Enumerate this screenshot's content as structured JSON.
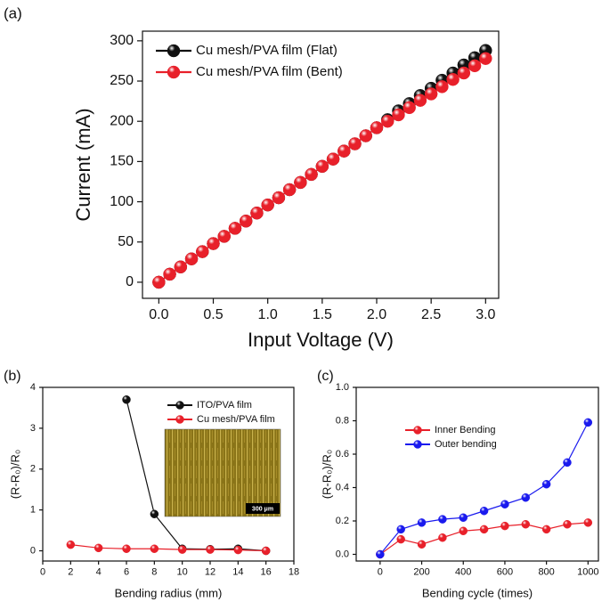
{
  "chart_data": [
    {
      "type": "line",
      "panel_label": "(a)",
      "x_label": "Input Voltage (V)",
      "y_label": "Current (mA)",
      "xlim": [
        -0.15,
        3.12
      ],
      "ylim": [
        -20,
        312
      ],
      "xticks": [
        {
          "value": 0,
          "label": "0.0"
        },
        {
          "value": 0.5,
          "label": "0.5"
        },
        {
          "value": 1,
          "label": "1.0"
        },
        {
          "value": 1.5,
          "label": "1.5"
        },
        {
          "value": 2,
          "label": "2.0"
        },
        {
          "value": 2.5,
          "label": "2.5"
        },
        {
          "value": 3,
          "label": "3.0"
        }
      ],
      "yticks": [
        0,
        50,
        100,
        150,
        200,
        250,
        300
      ],
      "legend": "upper left",
      "series": [
        {
          "name": "Cu mesh/PVA film (Flat)",
          "color": "#111111",
          "x": [
            0,
            0.1,
            0.2,
            0.3,
            0.4,
            0.5,
            0.6,
            0.7,
            0.8,
            0.9,
            1,
            1.1,
            1.2,
            1.3,
            1.4,
            1.5,
            1.6,
            1.7,
            1.8,
            1.9,
            2,
            2.1,
            2.2,
            2.3,
            2.4,
            2.5,
            2.6,
            2.7,
            2.8,
            2.9,
            3
          ],
          "values": [
            0,
            10,
            19,
            29,
            38,
            48,
            57,
            67,
            76,
            86,
            96,
            105,
            115,
            124,
            134,
            144,
            153,
            163,
            172,
            182,
            192,
            202,
            213,
            222,
            232,
            241,
            251,
            260,
            270,
            279,
            288
          ]
        },
        {
          "name": "Cu mesh/PVA film (Bent)",
          "color": "#e8202a",
          "x": [
            0,
            0.1,
            0.2,
            0.3,
            0.4,
            0.5,
            0.6,
            0.7,
            0.8,
            0.9,
            1,
            1.1,
            1.2,
            1.3,
            1.4,
            1.5,
            1.6,
            1.7,
            1.8,
            1.9,
            2,
            2.1,
            2.2,
            2.3,
            2.4,
            2.5,
            2.6,
            2.7,
            2.8,
            2.9,
            3
          ],
          "values": [
            0,
            10,
            19,
            29,
            38,
            48,
            57,
            67,
            76,
            86,
            96,
            105,
            115,
            124,
            134,
            144,
            153,
            163,
            172,
            182,
            192,
            200,
            208,
            217,
            226,
            234,
            243,
            252,
            260,
            269,
            278
          ]
        }
      ]
    },
    {
      "type": "line",
      "panel_label": "(b)",
      "x_label": "Bending radius (mm)",
      "y_label": "(R-R₀)/R₀",
      "xlim": [
        0,
        18
      ],
      "ylim": [
        -0.25,
        4
      ],
      "xticks": [
        0,
        2,
        4,
        6,
        8,
        10,
        12,
        14,
        16,
        18
      ],
      "yticks": [
        0,
        1,
        2,
        3,
        4
      ],
      "legend": "upper right",
      "inset_label": "300 μm",
      "series": [
        {
          "name": "ITO/PVA film",
          "color": "#111111",
          "x": [
            6,
            8,
            10,
            12,
            14,
            16
          ],
          "values": [
            3.7,
            0.9,
            0.05,
            0.04,
            0.05,
            0
          ]
        },
        {
          "name": "Cu mesh/PVA film",
          "color": "#e8202a",
          "x": [
            2,
            4,
            6,
            8,
            10,
            12,
            14,
            16
          ],
          "values": [
            0.15,
            0.07,
            0.05,
            0.05,
            0.03,
            0.03,
            0.02,
            0
          ]
        }
      ]
    },
    {
      "type": "line",
      "panel_label": "(c)",
      "x_label": "Bending cycle (times)",
      "y_label": "(R-R₀)/R₀",
      "xlim": [
        -115,
        1050
      ],
      "ylim": [
        -0.04,
        1
      ],
      "xticks": [
        0,
        200,
        400,
        600,
        800,
        1000
      ],
      "yticks": [
        {
          "value": 0,
          "label": "0.0"
        },
        {
          "value": 0.2,
          "label": "0.2"
        },
        {
          "value": 0.4,
          "label": "0.4"
        },
        {
          "value": 0.6,
          "label": "0.6"
        },
        {
          "value": 0.8,
          "label": "0.8"
        },
        {
          "value": 1,
          "label": "1.0"
        }
      ],
      "legend": "upper left",
      "series": [
        {
          "name": "Inner Bending",
          "color": "#e8202a",
          "x": [
            0,
            100,
            200,
            300,
            400,
            500,
            600,
            700,
            800,
            900,
            1000
          ],
          "values": [
            0,
            0.09,
            0.06,
            0.1,
            0.14,
            0.15,
            0.17,
            0.18,
            0.15,
            0.18,
            0.19
          ]
        },
        {
          "name": "Outer bending",
          "color": "#1a1aee",
          "x": [
            0,
            100,
            200,
            300,
            400,
            500,
            600,
            700,
            800,
            900,
            1000
          ],
          "values": [
            0,
            0.15,
            0.19,
            0.21,
            0.22,
            0.26,
            0.3,
            0.34,
            0.42,
            0.55,
            0.79
          ]
        }
      ]
    }
  ]
}
